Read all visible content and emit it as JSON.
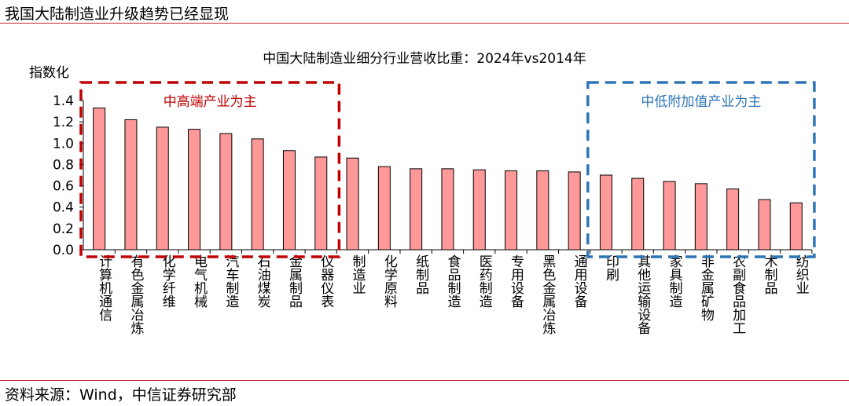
{
  "header": {
    "title": "我国大陆制造业升级趋势已经显现"
  },
  "footer": {
    "source": "资料来源：Wind，中信证券研究部"
  },
  "colors": {
    "bar": "#ff9999",
    "bar_stroke": "#000000",
    "high_box": "#c00000",
    "low_box": "#2e75b6",
    "header_rule": "#c0282d"
  },
  "chart_data": {
    "type": "bar",
    "title": "中国大陆制造业细分行业营收比重：2024年vs2014年",
    "ylabel": "指数化",
    "xlabel": "",
    "ylim": [
      0,
      1.4
    ],
    "yticks": [
      "0.0",
      "0.2",
      "0.4",
      "0.6",
      "0.8",
      "1.0",
      "1.2",
      "1.4"
    ],
    "grid": false,
    "categories": [
      "计算机通信",
      "有色金属冶炼",
      "化学纤维",
      "电气机械",
      "汽车制造",
      "石油煤炭",
      "金属制品",
      "仪器仪表",
      "制造业",
      "化学原料",
      "纸制品",
      "食品制造",
      "医药制造",
      "专用设备",
      "黑色金属冶炼",
      "通用设备",
      "印刷",
      "其他运输设备",
      "家具制造",
      "非金属矿物",
      "农副食品加工",
      "木制品",
      "纺织业"
    ],
    "values": [
      1.33,
      1.22,
      1.15,
      1.13,
      1.09,
      1.04,
      0.93,
      0.87,
      0.86,
      0.78,
      0.76,
      0.76,
      0.75,
      0.74,
      0.74,
      0.73,
      0.7,
      0.67,
      0.64,
      0.62,
      0.57,
      0.47,
      0.44
    ],
    "annotations": [
      {
        "text": "中高端产业为主",
        "first_category": 0,
        "last_category": 7,
        "color": "#c00000"
      },
      {
        "text": "中低附加值产业为主",
        "first_category": 16,
        "last_category": 22,
        "color": "#2e75b6"
      }
    ]
  }
}
